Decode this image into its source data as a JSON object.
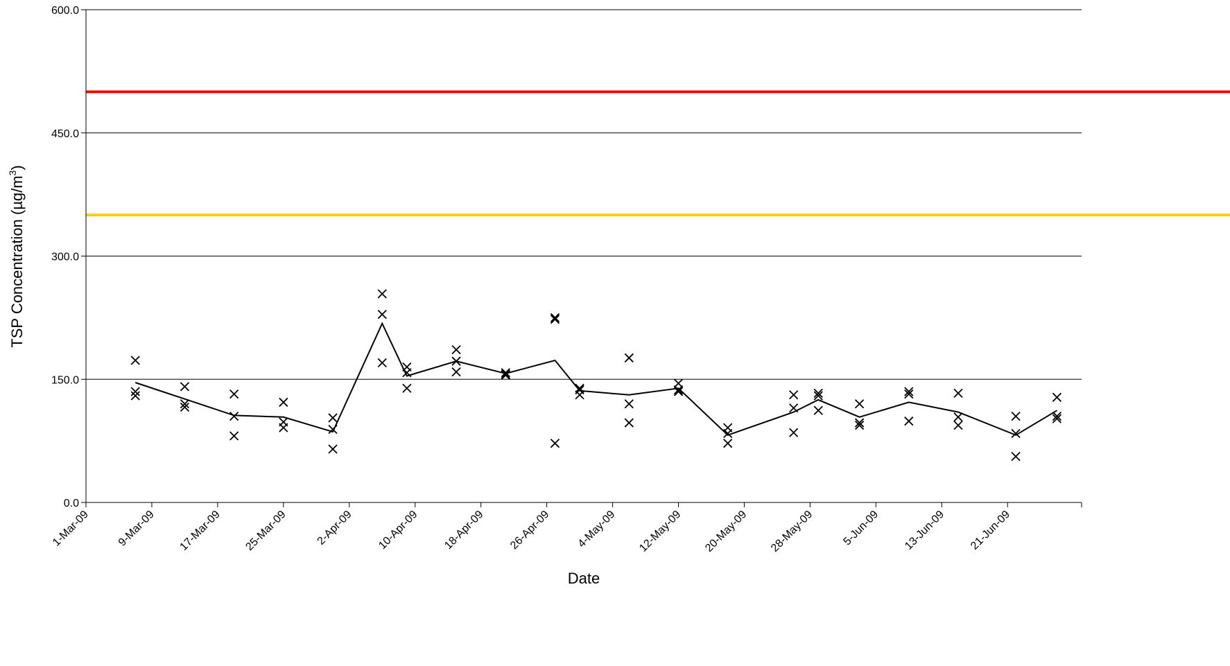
{
  "chart_data": {
    "type": "scatter",
    "xlabel": "Date",
    "ylabel": "TSP Concentration (µg/m",
    "ylabel_sup": "3",
    "ylabel_close": ")",
    "ylim": [
      0,
      600
    ],
    "yticks": [
      "0.0",
      "150.0",
      "300.0",
      "450.0",
      "600.0"
    ],
    "ytick_values": [
      0,
      150,
      300,
      450,
      600
    ],
    "xlim": [
      "2009-03-01",
      "2009-06-30"
    ],
    "xticks": [
      "1-Mar-09",
      "9-Mar-09",
      "17-Mar-09",
      "25-Mar-09",
      "2-Apr-09",
      "10-Apr-09",
      "18-Apr-09",
      "26-Apr-09",
      "4-May-09",
      "12-May-09",
      "20-May-09",
      "28-May-09",
      "5-Jun-09",
      "13-Jun-09",
      "21-Jun-09"
    ],
    "xtick_dates": [
      "2009-03-01",
      "2009-03-09",
      "2009-03-17",
      "2009-03-25",
      "2009-04-02",
      "2009-04-10",
      "2009-04-18",
      "2009-04-26",
      "2009-05-04",
      "2009-05-12",
      "2009-05-20",
      "2009-05-28",
      "2009-06-05",
      "2009-06-13",
      "2009-06-21"
    ],
    "grid": "horizontal",
    "limit_lines": [
      {
        "value": 500,
        "color": "#ff0000"
      },
      {
        "value": 350,
        "color": "#ffcc00"
      }
    ],
    "series": [
      {
        "marker": "x",
        "color": "#000000",
        "points": [
          [
            "2009-03-07",
            173
          ],
          [
            "2009-03-07",
            135
          ],
          [
            "2009-03-07",
            130
          ],
          [
            "2009-03-13",
            141
          ],
          [
            "2009-03-13",
            120
          ],
          [
            "2009-03-13",
            116
          ],
          [
            "2009-03-19",
            132
          ],
          [
            "2009-03-19",
            105
          ],
          [
            "2009-03-19",
            81
          ],
          [
            "2009-03-25",
            122
          ],
          [
            "2009-03-25",
            98
          ],
          [
            "2009-03-25",
            91
          ],
          [
            "2009-03-31",
            103
          ],
          [
            "2009-03-31",
            89
          ],
          [
            "2009-03-31",
            65
          ],
          [
            "2009-04-06",
            254
          ],
          [
            "2009-04-06",
            229
          ],
          [
            "2009-04-06",
            170
          ],
          [
            "2009-04-09",
            165
          ],
          [
            "2009-04-09",
            158
          ],
          [
            "2009-04-09",
            139
          ],
          [
            "2009-04-15",
            186
          ],
          [
            "2009-04-15",
            172
          ],
          [
            "2009-04-15",
            159
          ],
          [
            "2009-04-21",
            158
          ],
          [
            "2009-04-21",
            156
          ],
          [
            "2009-04-21",
            155
          ],
          [
            "2009-04-27",
            225
          ],
          [
            "2009-04-27",
            223
          ],
          [
            "2009-04-27",
            72
          ],
          [
            "2009-04-30",
            139
          ],
          [
            "2009-04-30",
            137
          ],
          [
            "2009-04-30",
            131
          ],
          [
            "2009-05-06",
            176
          ],
          [
            "2009-05-06",
            120
          ],
          [
            "2009-05-06",
            97
          ],
          [
            "2009-05-12",
            145
          ],
          [
            "2009-05-12",
            137
          ],
          [
            "2009-05-12",
            135
          ],
          [
            "2009-05-18",
            91
          ],
          [
            "2009-05-18",
            84
          ],
          [
            "2009-05-18",
            72
          ],
          [
            "2009-05-26",
            131
          ],
          [
            "2009-05-26",
            115
          ],
          [
            "2009-05-26",
            85
          ],
          [
            "2009-05-29",
            133
          ],
          [
            "2009-05-29",
            130
          ],
          [
            "2009-05-29",
            112
          ],
          [
            "2009-06-03",
            120
          ],
          [
            "2009-06-03",
            97
          ],
          [
            "2009-06-03",
            94
          ],
          [
            "2009-06-09",
            135
          ],
          [
            "2009-06-09",
            132
          ],
          [
            "2009-06-09",
            99
          ],
          [
            "2009-06-15",
            133
          ],
          [
            "2009-06-15",
            104
          ],
          [
            "2009-06-15",
            94
          ],
          [
            "2009-06-22",
            105
          ],
          [
            "2009-06-22",
            84
          ],
          [
            "2009-06-22",
            56
          ],
          [
            "2009-06-27",
            128
          ],
          [
            "2009-06-27",
            105
          ],
          [
            "2009-06-27",
            102
          ]
        ]
      },
      {
        "type": "line",
        "color": "#000000",
        "points": [
          [
            "2009-03-07",
            146
          ],
          [
            "2009-03-13",
            126
          ],
          [
            "2009-03-19",
            106
          ],
          [
            "2009-03-25",
            104
          ],
          [
            "2009-03-31",
            86
          ],
          [
            "2009-04-06",
            218
          ],
          [
            "2009-04-09",
            154
          ],
          [
            "2009-04-15",
            172
          ],
          [
            "2009-04-21",
            157
          ],
          [
            "2009-04-27",
            173
          ],
          [
            "2009-04-30",
            136
          ],
          [
            "2009-05-06",
            131
          ],
          [
            "2009-05-12",
            139
          ],
          [
            "2009-05-18",
            82
          ],
          [
            "2009-05-26",
            110
          ],
          [
            "2009-05-29",
            125
          ],
          [
            "2009-06-03",
            104
          ],
          [
            "2009-06-09",
            122
          ],
          [
            "2009-06-15",
            110
          ],
          [
            "2009-06-22",
            82
          ],
          [
            "2009-06-27",
            112
          ]
        ]
      }
    ]
  }
}
